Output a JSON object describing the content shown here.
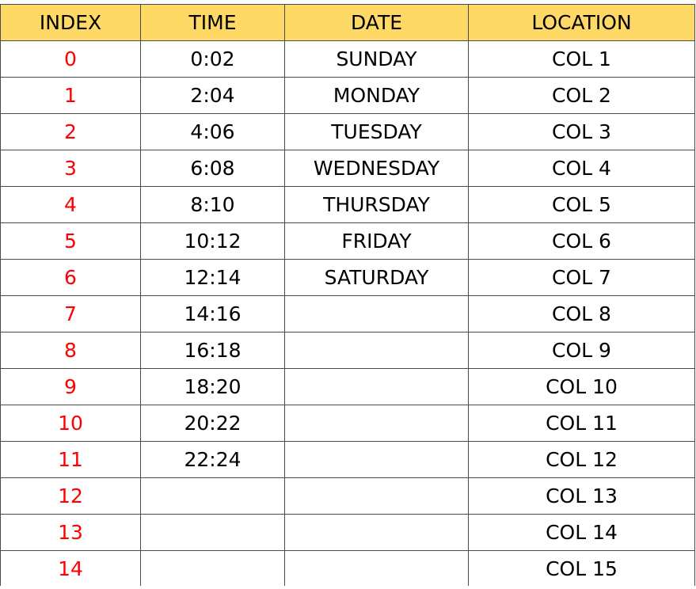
{
  "table": {
    "headers": [
      "INDEX",
      "TIME",
      "DATE",
      "LOCATION"
    ],
    "rows": [
      {
        "index": "0",
        "time": "0:02",
        "date": "SUNDAY",
        "location": "COL 1"
      },
      {
        "index": "1",
        "time": "2:04",
        "date": "MONDAY",
        "location": "COL 2"
      },
      {
        "index": "2",
        "time": "4:06",
        "date": "TUESDAY",
        "location": "COL 3"
      },
      {
        "index": "3",
        "time": "6:08",
        "date": "WEDNESDAY",
        "location": "COL 4"
      },
      {
        "index": "4",
        "time": "8:10",
        "date": "THURSDAY",
        "location": "COL 5"
      },
      {
        "index": "5",
        "time": "10:12",
        "date": "FRIDAY",
        "location": "COL 6"
      },
      {
        "index": "6",
        "time": "12:14",
        "date": "SATURDAY",
        "location": "COL 7"
      },
      {
        "index": "7",
        "time": "14:16",
        "date": "",
        "location": "COL 8"
      },
      {
        "index": "8",
        "time": "16:18",
        "date": "",
        "location": "COL 9"
      },
      {
        "index": "9",
        "time": "18:20",
        "date": "",
        "location": "COL 10"
      },
      {
        "index": "10",
        "time": "20:22",
        "date": "",
        "location": "COL 11"
      },
      {
        "index": "11",
        "time": "22:24",
        "date": "",
        "location": "COL 12"
      },
      {
        "index": "12",
        "time": "",
        "date": "",
        "location": "COL 13"
      },
      {
        "index": "13",
        "time": "",
        "date": "",
        "location": "COL 14"
      },
      {
        "index": "14",
        "time": "",
        "date": "",
        "location": "COL 15"
      }
    ]
  },
  "colors": {
    "header_fill": "#ffd966",
    "index_text": "#ff0000",
    "grid_line": "#4a4a4a"
  }
}
